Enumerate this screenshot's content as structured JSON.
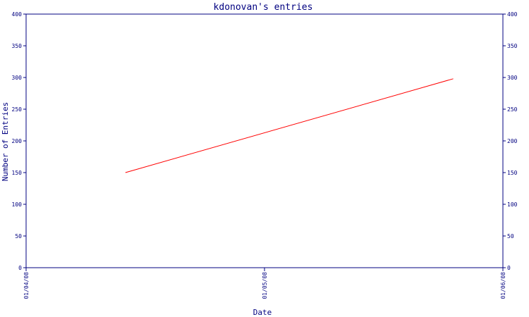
{
  "chart_data": {
    "type": "line",
    "title": "kdonovan's entries",
    "xlabel": "Date",
    "ylabel": "Number of Entries",
    "ylim": [
      0,
      400
    ],
    "yticks": [
      "0",
      "50",
      "100",
      "150",
      "200",
      "250",
      "300",
      "350",
      "400"
    ],
    "xticks": [
      "01/04/08",
      "01/05/08",
      "01/06/08"
    ],
    "xlim": [
      "01/04/08",
      "01/06/08"
    ],
    "grid": false,
    "y_axis_mirrored_right": true,
    "series": [
      {
        "color": "#ff0000",
        "points": [
          {
            "x": "01/04/08 10:00",
            "y": 150
          },
          {
            "x": "01/05/08 19:00",
            "y": 298
          }
        ]
      }
    ]
  }
}
